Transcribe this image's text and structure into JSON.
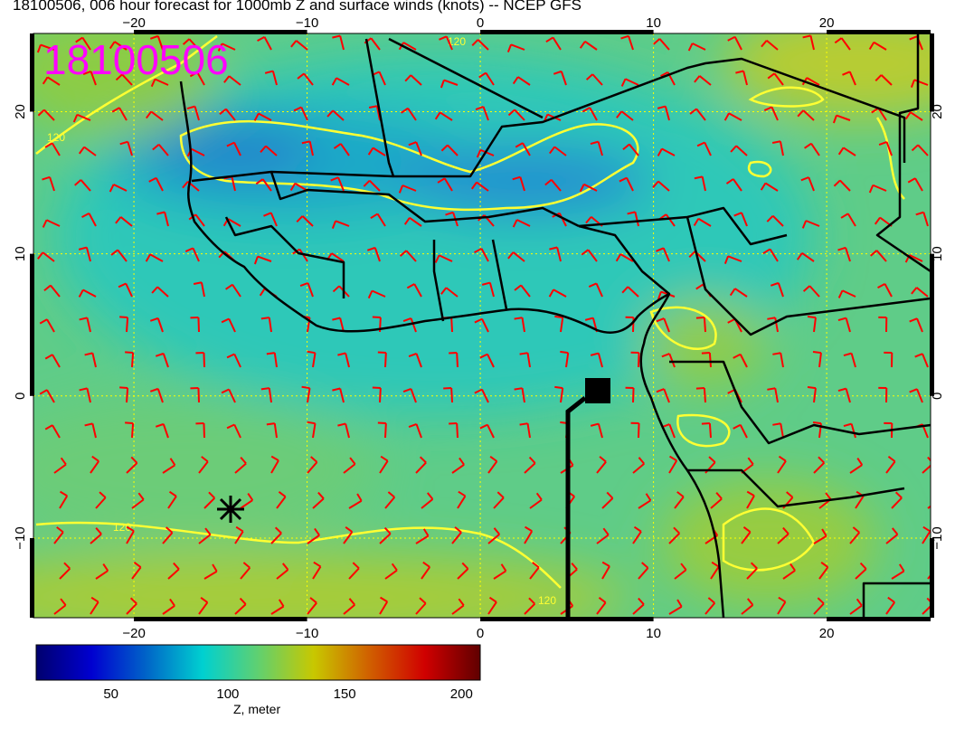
{
  "title": "18100506, 006 hour forecast for 1000mb Z and surface winds (knots) -- NCEP GFS",
  "stamp": "18100506",
  "map": {
    "lon_range": [
      -25.8,
      26
    ],
    "lat_range": [
      -15.6,
      25.5
    ],
    "lon_ticks": [
      -20,
      -10,
      0,
      10,
      20
    ],
    "lat_ticks": [
      20,
      10,
      0,
      -10
    ],
    "lon_tick_labels": [
      "−20",
      "−10",
      "0",
      "10",
      "20"
    ],
    "lat_tick_labels": [
      "20",
      "10",
      "0",
      "−10"
    ],
    "contour_label": "120",
    "contour_color": "#ffff33",
    "barb_color": "#ff0000",
    "coast_color": "#000000"
  },
  "colorbar": {
    "range": [
      18,
      208
    ],
    "ticks": [
      50,
      100,
      150,
      200
    ],
    "tick_labels": [
      "50",
      "100",
      "150",
      "200"
    ],
    "label": "Z, meter",
    "colors": [
      "#00006e",
      "#0000d0",
      "#0066c8",
      "#00d0d0",
      "#60d070",
      "#c8c800",
      "#d06000",
      "#d00000",
      "#600000"
    ]
  }
}
